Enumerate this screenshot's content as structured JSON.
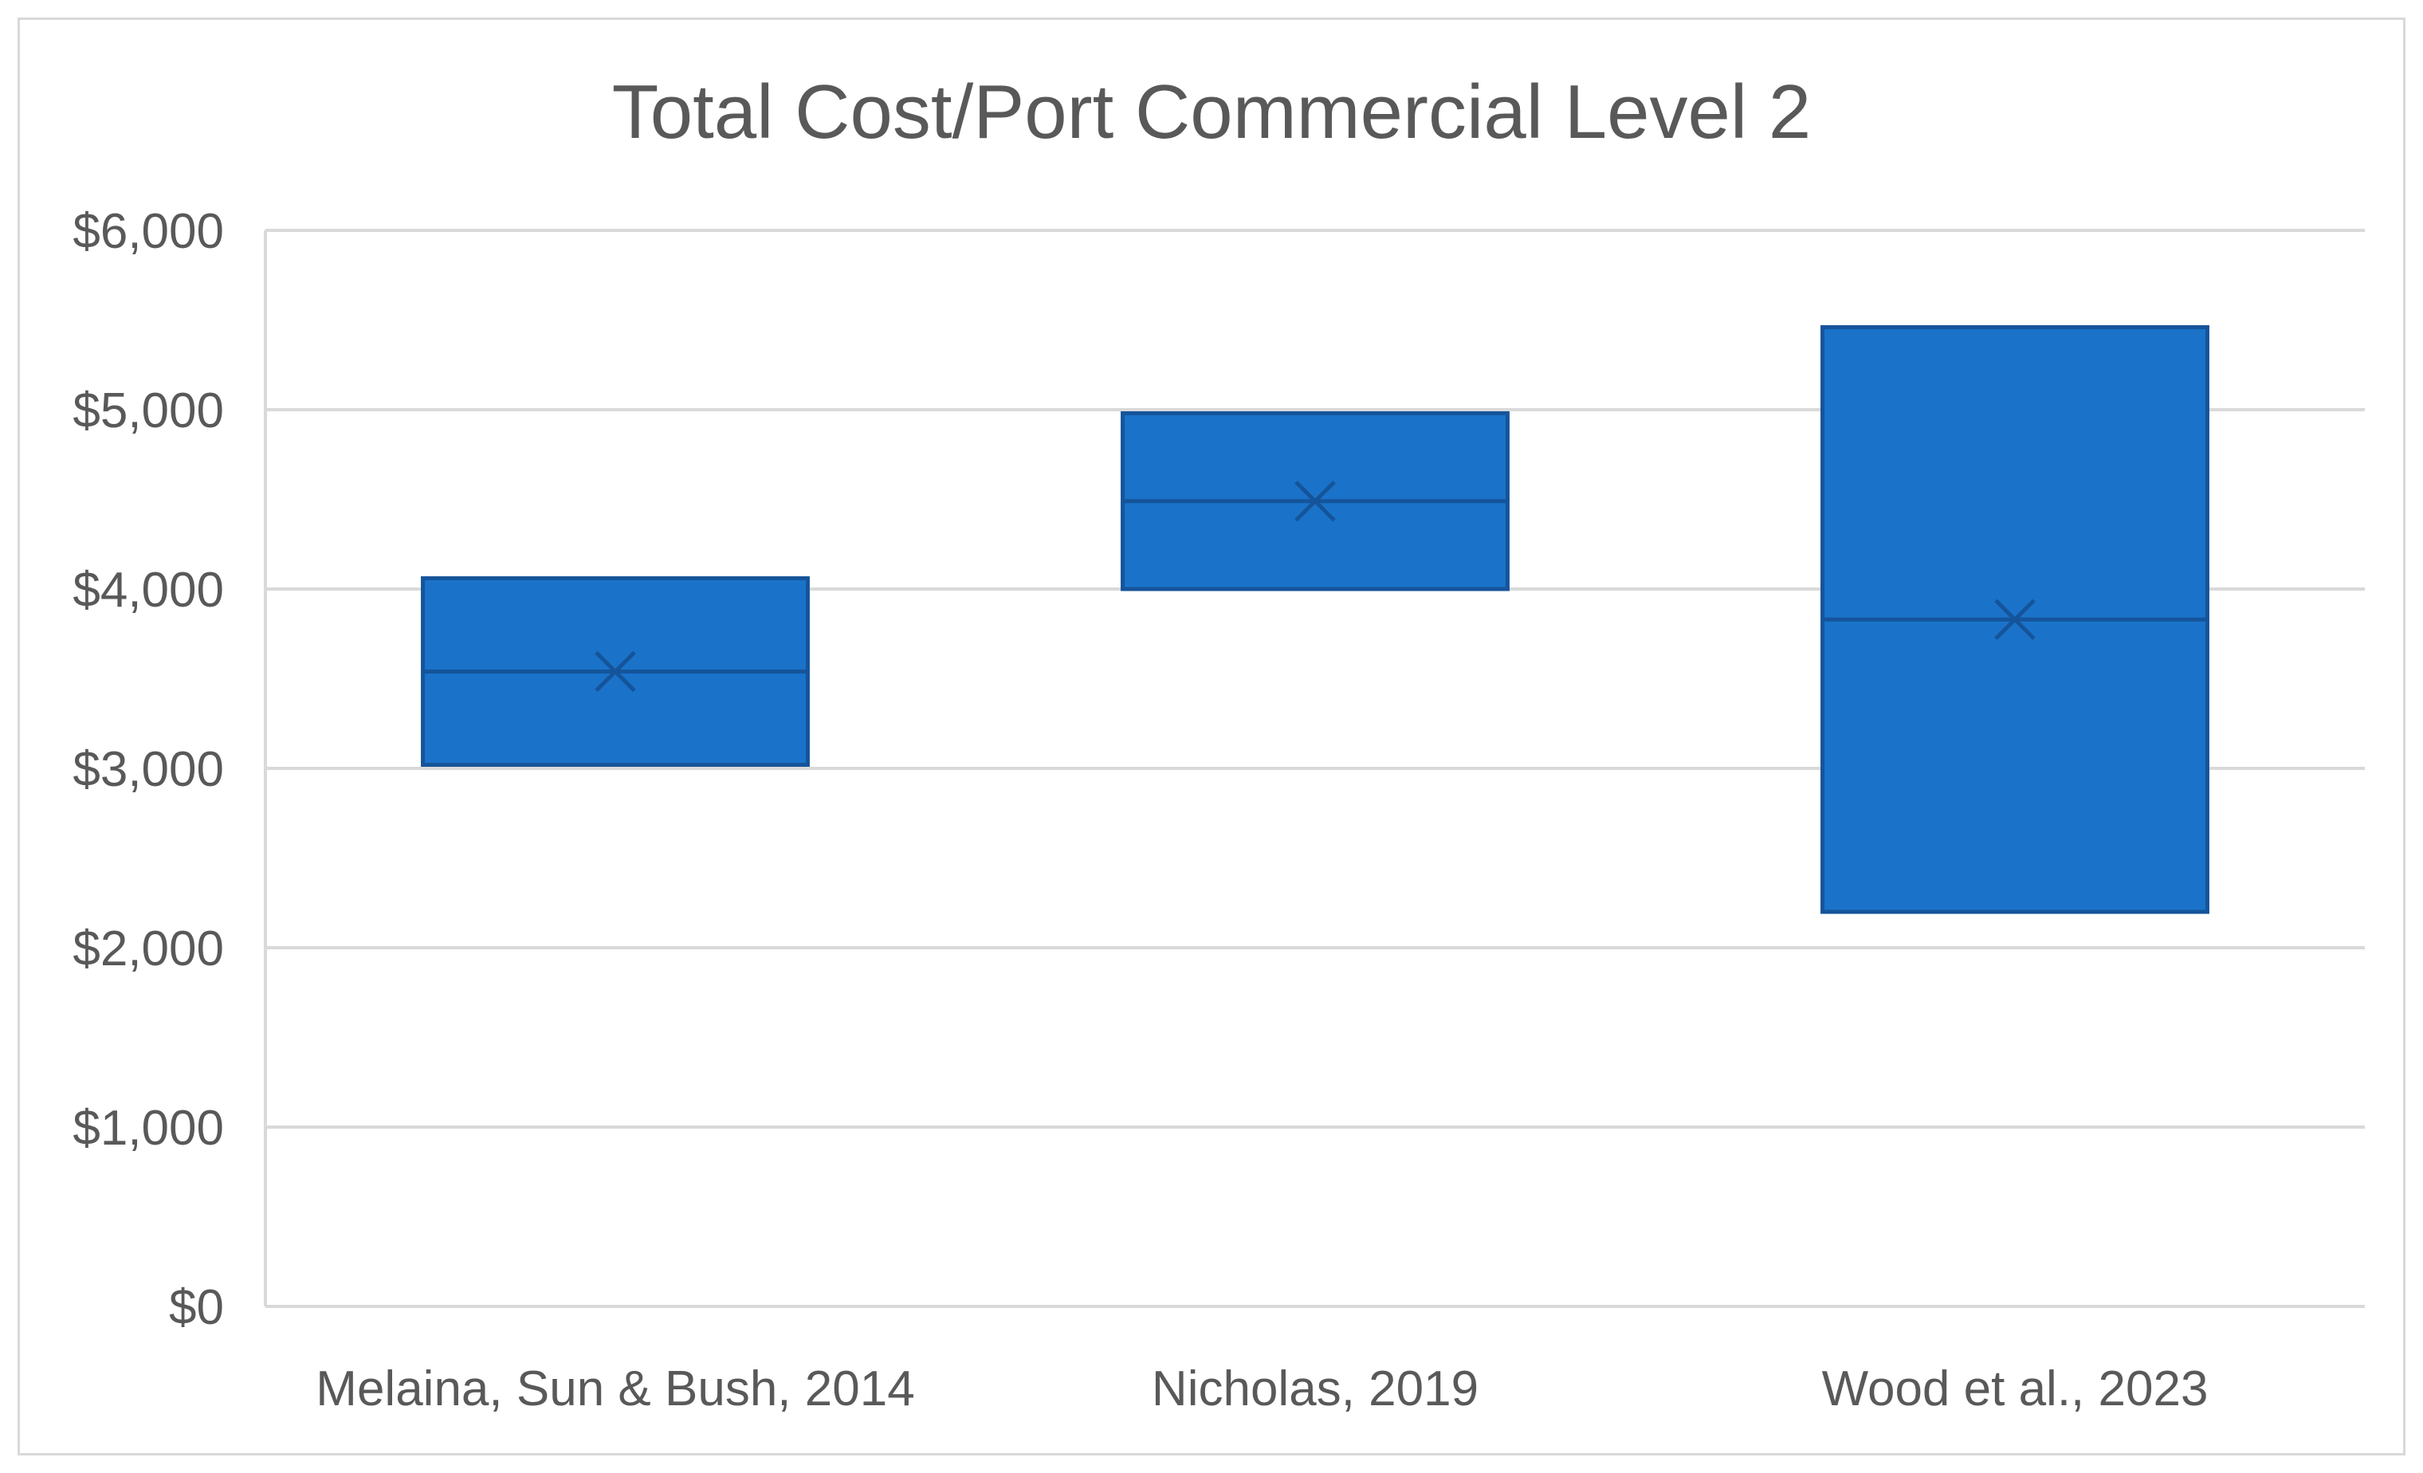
{
  "chart_data": {
    "type": "box",
    "title": "Total Cost/Port Commercial Level 2",
    "xlabel": "",
    "ylabel": "",
    "ylim": [
      0,
      6000
    ],
    "y_ticks": [
      0,
      1000,
      2000,
      3000,
      4000,
      5000,
      6000
    ],
    "y_tick_labels": [
      "$0",
      "$1,000",
      "$2,000",
      "$3,000",
      "$4,000",
      "$5,000",
      "$6,000"
    ],
    "gridlines": true,
    "legend": "none",
    "categories": [
      "Melaina, Sun & Bush, 2014",
      "Nicholas, 2019",
      "Wood et al., 2023"
    ],
    "series": [
      {
        "name": "Total Cost/Port",
        "color": "#1a73c9",
        "edge_color": "#15549a",
        "boxes": [
          {
            "category": "Melaina, Sun & Bush, 2014",
            "min": 3020,
            "max": 4060,
            "median": 3540,
            "mean": 3540
          },
          {
            "category": "Nicholas, 2019",
            "min": 4000,
            "max": 4980,
            "median": 4490,
            "mean": 4490
          },
          {
            "category": "Wood et al., 2023",
            "min": 2200,
            "max": 5460,
            "median": 3830,
            "mean": 3830
          }
        ]
      }
    ]
  }
}
